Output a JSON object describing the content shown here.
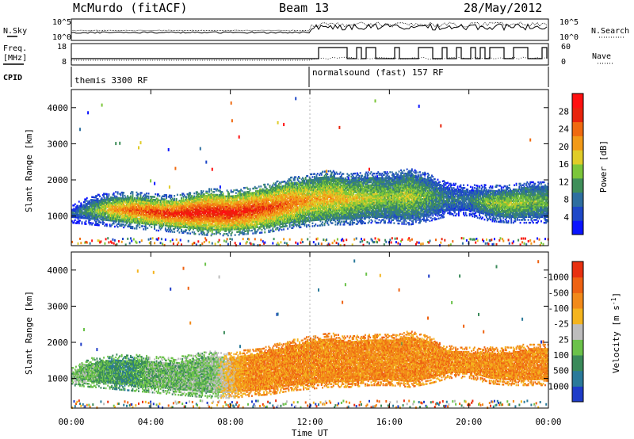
{
  "header": {
    "station": "McMurdo (fitACF)",
    "beam": "Beam 13",
    "date": "28/May/2012"
  },
  "strip": {
    "nsky_label": "N.Sky",
    "nsearch_label": "N.Search",
    "freq_label_1": "Freq.",
    "freq_label_2": "[MHz]",
    "nave_label": "Nave",
    "cpid_label": "CPID",
    "noise_left_top": "10^5",
    "noise_left_bottom": "10^0",
    "noise_right_top": "10^5",
    "noise_right_bottom": "10^0",
    "freq_top": "18",
    "freq_bottom": "8",
    "nave_top": "60",
    "nave_bottom": "0",
    "cpid_1": "themis 3300 RF",
    "cpid_2": "normalsound (fast) 157 RF"
  },
  "chart_data": [
    {
      "type": "heatmap",
      "name": "Power",
      "ylabel": "Slant Range [km]",
      "xlabel": "",
      "x_ticks": [
        "00:00",
        "04:00",
        "08:00",
        "12:00",
        "16:00",
        "20:00",
        "00:00"
      ],
      "x_range_hours": [
        0,
        24
      ],
      "y_ticks": [
        1000,
        2000,
        3000,
        4000
      ],
      "y_range_km": [
        180,
        4500
      ],
      "colorbar": {
        "label": "Power [dB]",
        "ticks": [
          4,
          8,
          12,
          16,
          20,
          24,
          28
        ],
        "colors": [
          "#0a14ff",
          "#1e48c8",
          "#2e6fa0",
          "#3f8f5a",
          "#7cc63a",
          "#e0cc28",
          "#f29a18",
          "#f06a10",
          "#e8240c",
          "#ff1010"
        ]
      },
      "echo_band": [
        {
          "t": 0.0,
          "lo": 950,
          "hi": 1150,
          "level": 6
        },
        {
          "t": 1.0,
          "lo": 900,
          "hi": 1400,
          "level": 12
        },
        {
          "t": 2.0,
          "lo": 850,
          "hi": 1500,
          "level": 20
        },
        {
          "t": 3.0,
          "lo": 800,
          "hi": 1500,
          "level": 24
        },
        {
          "t": 4.0,
          "lo": 750,
          "hi": 1450,
          "level": 26
        },
        {
          "t": 5.0,
          "lo": 700,
          "hi": 1400,
          "level": 28
        },
        {
          "t": 6.0,
          "lo": 650,
          "hi": 1500,
          "level": 29
        },
        {
          "t": 7.0,
          "lo": 600,
          "hi": 1600,
          "level": 29
        },
        {
          "t": 8.0,
          "lo": 600,
          "hi": 1550,
          "level": 29
        },
        {
          "t": 9.0,
          "lo": 650,
          "hi": 1650,
          "level": 28
        },
        {
          "t": 10.0,
          "lo": 700,
          "hi": 1750,
          "level": 26
        },
        {
          "t": 11.0,
          "lo": 800,
          "hi": 1900,
          "level": 24
        },
        {
          "t": 12.0,
          "lo": 850,
          "hi": 2000,
          "level": 20
        },
        {
          "t": 13.0,
          "lo": 900,
          "hi": 2100,
          "level": 20
        },
        {
          "t": 14.0,
          "lo": 900,
          "hi": 2000,
          "level": 18
        },
        {
          "t": 15.0,
          "lo": 950,
          "hi": 2050,
          "level": 16
        },
        {
          "t": 16.0,
          "lo": 950,
          "hi": 2050,
          "level": 14
        },
        {
          "t": 17.0,
          "lo": 900,
          "hi": 2150,
          "level": 16
        },
        {
          "t": 18.0,
          "lo": 1000,
          "hi": 2000,
          "level": 12
        },
        {
          "t": 19.0,
          "lo": 1150,
          "hi": 1750,
          "level": 8
        },
        {
          "t": 20.0,
          "lo": 1150,
          "hi": 1700,
          "level": 8
        },
        {
          "t": 21.0,
          "lo": 1000,
          "hi": 1700,
          "level": 14
        },
        {
          "t": 22.0,
          "lo": 950,
          "hi": 1700,
          "level": 16
        },
        {
          "t": 23.0,
          "lo": 950,
          "hi": 1800,
          "level": 14
        },
        {
          "t": 24.0,
          "lo": 950,
          "hi": 1800,
          "level": 12
        }
      ]
    },
    {
      "type": "heatmap",
      "name": "Velocity",
      "ylabel": "Slant Range [km]",
      "xlabel": "Time UT",
      "x_ticks": [
        "00:00",
        "04:00",
        "08:00",
        "12:00",
        "16:00",
        "20:00",
        "00:00"
      ],
      "x_range_hours": [
        0,
        24
      ],
      "y_ticks": [
        1000,
        2000,
        3000,
        4000
      ],
      "y_range_km": [
        180,
        4500
      ],
      "colorbar": {
        "label": "Velocity [m s^-1]",
        "ticks": [
          "1000",
          "500",
          "100",
          "25",
          "-25",
          "-100",
          "-500",
          "-1000"
        ],
        "colors": [
          "#1e3cc8",
          "#2a7a9a",
          "#3a8a5a",
          "#6bc24a",
          "#bdbdbd",
          "#f4b41e",
          "#f28a1a",
          "#ee6212",
          "#e83010"
        ]
      },
      "echo_band": [
        {
          "t": 0.0,
          "lo": 950,
          "hi": 1150,
          "level": 3
        },
        {
          "t": 1.0,
          "lo": 900,
          "hi": 1400,
          "level": 3
        },
        {
          "t": 2.0,
          "lo": 850,
          "hi": 1500,
          "level": 2
        },
        {
          "t": 3.0,
          "lo": 800,
          "hi": 1500,
          "level": 2
        },
        {
          "t": 4.0,
          "lo": 750,
          "hi": 1450,
          "level": 3
        },
        {
          "t": 5.0,
          "lo": 700,
          "hi": 1400,
          "level": 3
        },
        {
          "t": 6.0,
          "lo": 650,
          "hi": 1500,
          "level": 3
        },
        {
          "t": 7.0,
          "lo": 600,
          "hi": 1600,
          "level": 3
        },
        {
          "t": 8.0,
          "lo": 600,
          "hi": 1550,
          "level": 5
        },
        {
          "t": 9.0,
          "lo": 650,
          "hi": 1650,
          "level": 6
        },
        {
          "t": 10.0,
          "lo": 700,
          "hi": 1750,
          "level": 6
        },
        {
          "t": 11.0,
          "lo": 800,
          "hi": 1900,
          "level": 6
        },
        {
          "t": 12.0,
          "lo": 850,
          "hi": 2000,
          "level": 6
        },
        {
          "t": 13.0,
          "lo": 900,
          "hi": 2100,
          "level": 6
        },
        {
          "t": 14.0,
          "lo": 900,
          "hi": 2000,
          "level": 6
        },
        {
          "t": 15.0,
          "lo": 950,
          "hi": 2050,
          "level": 6
        },
        {
          "t": 16.0,
          "lo": 950,
          "hi": 2050,
          "level": 6
        },
        {
          "t": 17.0,
          "lo": 900,
          "hi": 2150,
          "level": 6
        },
        {
          "t": 18.0,
          "lo": 1000,
          "hi": 2000,
          "level": 6
        },
        {
          "t": 19.0,
          "lo": 1150,
          "hi": 1750,
          "level": 6
        },
        {
          "t": 20.0,
          "lo": 1150,
          "hi": 1700,
          "level": 6
        },
        {
          "t": 21.0,
          "lo": 1000,
          "hi": 1700,
          "level": 6
        },
        {
          "t": 22.0,
          "lo": 950,
          "hi": 1700,
          "level": 6
        },
        {
          "t": 23.0,
          "lo": 950,
          "hi": 1800,
          "level": 6
        },
        {
          "t": 24.0,
          "lo": 950,
          "hi": 1800,
          "level": 6
        }
      ]
    }
  ]
}
